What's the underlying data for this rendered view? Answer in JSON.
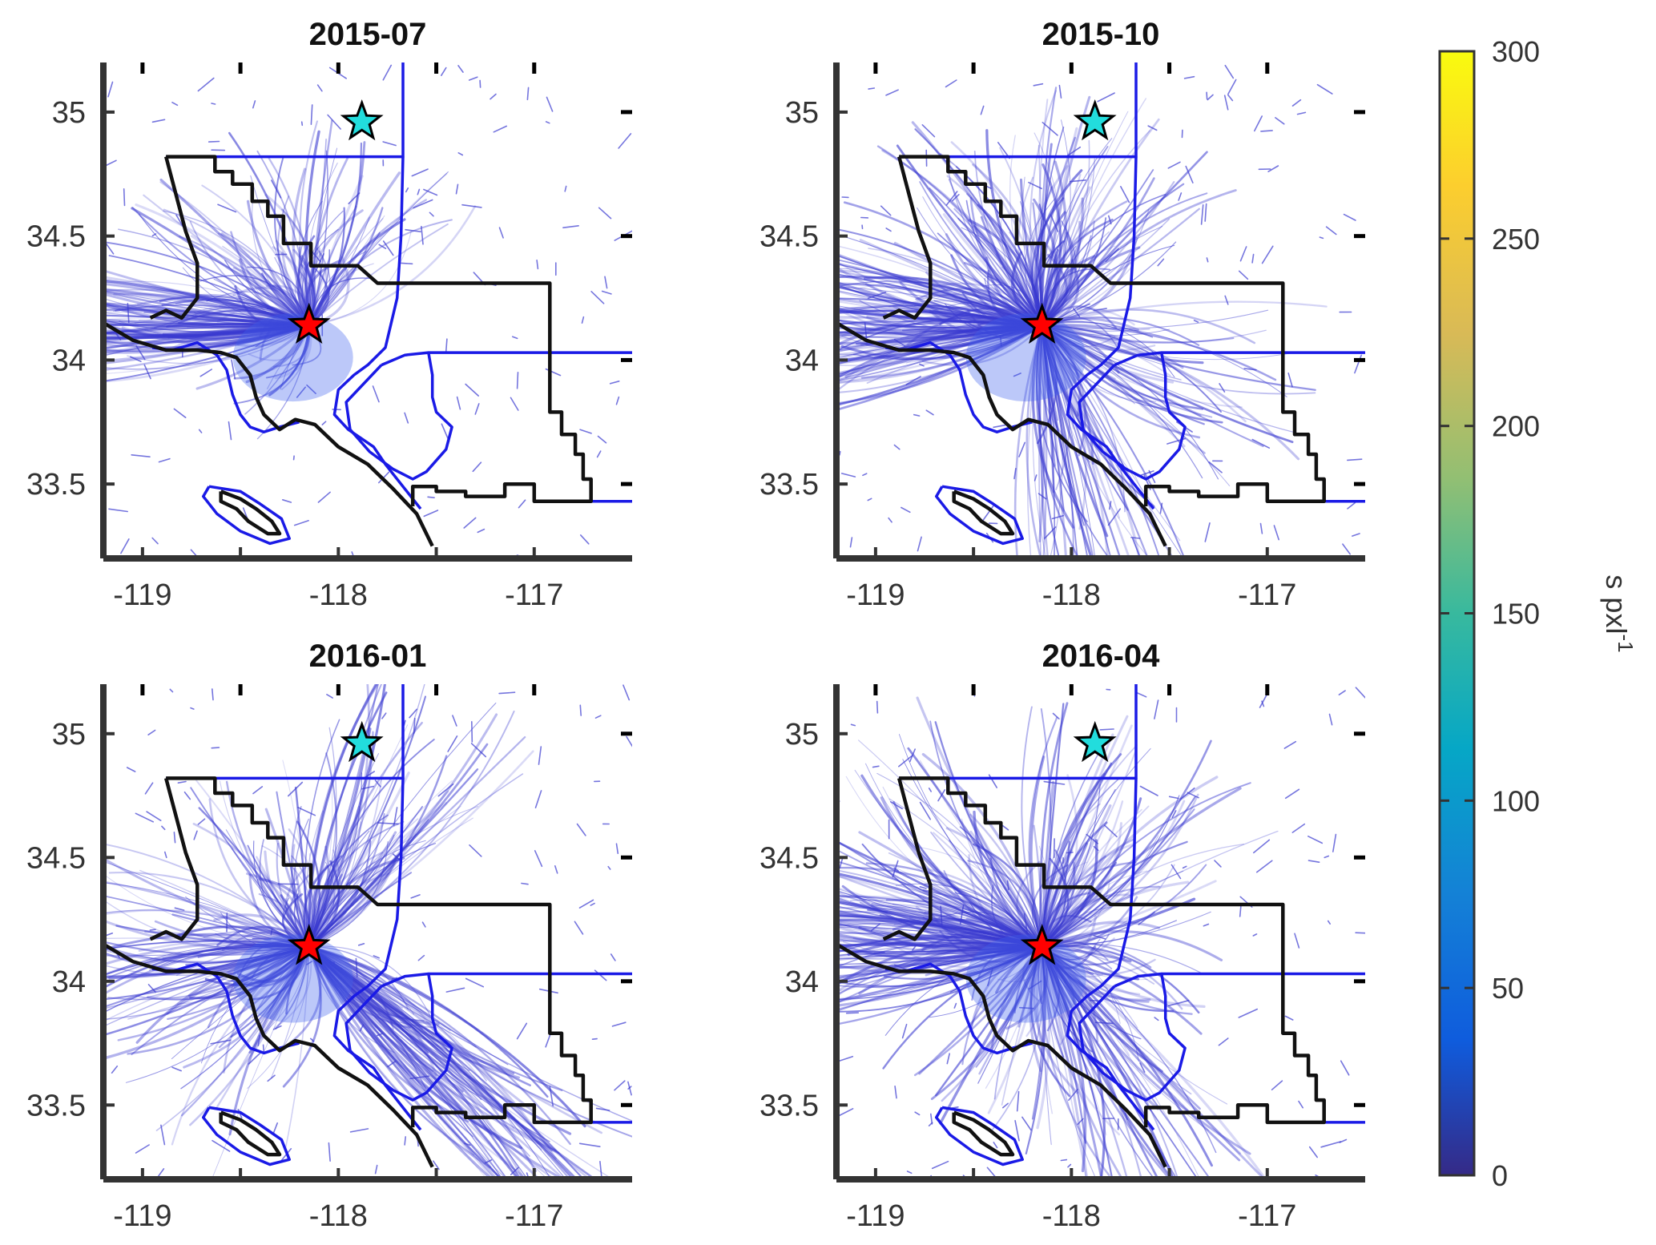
{
  "chart_data": {
    "type": "heatmap",
    "panels": [
      {
        "title": "2015-07",
        "xlim": [
          -119.2,
          -116.5
        ],
        "ylim": [
          33.2,
          35.2
        ]
      },
      {
        "title": "2015-10",
        "xlim": [
          -119.2,
          -116.5
        ],
        "ylim": [
          33.2,
          35.2
        ]
      },
      {
        "title": "2016-01",
        "xlim": [
          -119.2,
          -116.5
        ],
        "ylim": [
          33.2,
          35.2
        ]
      },
      {
        "title": "2016-04",
        "xlim": [
          -119.2,
          -116.5
        ],
        "ylim": [
          33.2,
          35.2
        ]
      }
    ],
    "x_ticks": [
      -119,
      -118,
      -117
    ],
    "x_tick_labels": [
      "-119",
      "-118",
      "-117"
    ],
    "y_ticks": [
      33.5,
      34,
      34.5,
      35
    ],
    "y_tick_labels": [
      "33.5",
      "34",
      "34.5",
      "35"
    ],
    "markers": [
      {
        "color": "#ff0000",
        "lon": -118.15,
        "lat": 34.14
      },
      {
        "color": "#22dddd",
        "lon": -117.88,
        "lat": 34.96
      }
    ],
    "colorbar": {
      "range": [
        0,
        300
      ],
      "ticks": [
        0,
        50,
        100,
        150,
        200,
        250,
        300
      ],
      "tick_labels": [
        "0",
        "50",
        "100",
        "150",
        "200",
        "250",
        "300"
      ],
      "label_base": "s pxl",
      "label_exponent": "-1",
      "colormap": "parula"
    },
    "colors": {
      "axis": "#333333",
      "county_border": "#111111",
      "district_border": "#1a1ae6",
      "plume": "#3a3ad0"
    }
  }
}
